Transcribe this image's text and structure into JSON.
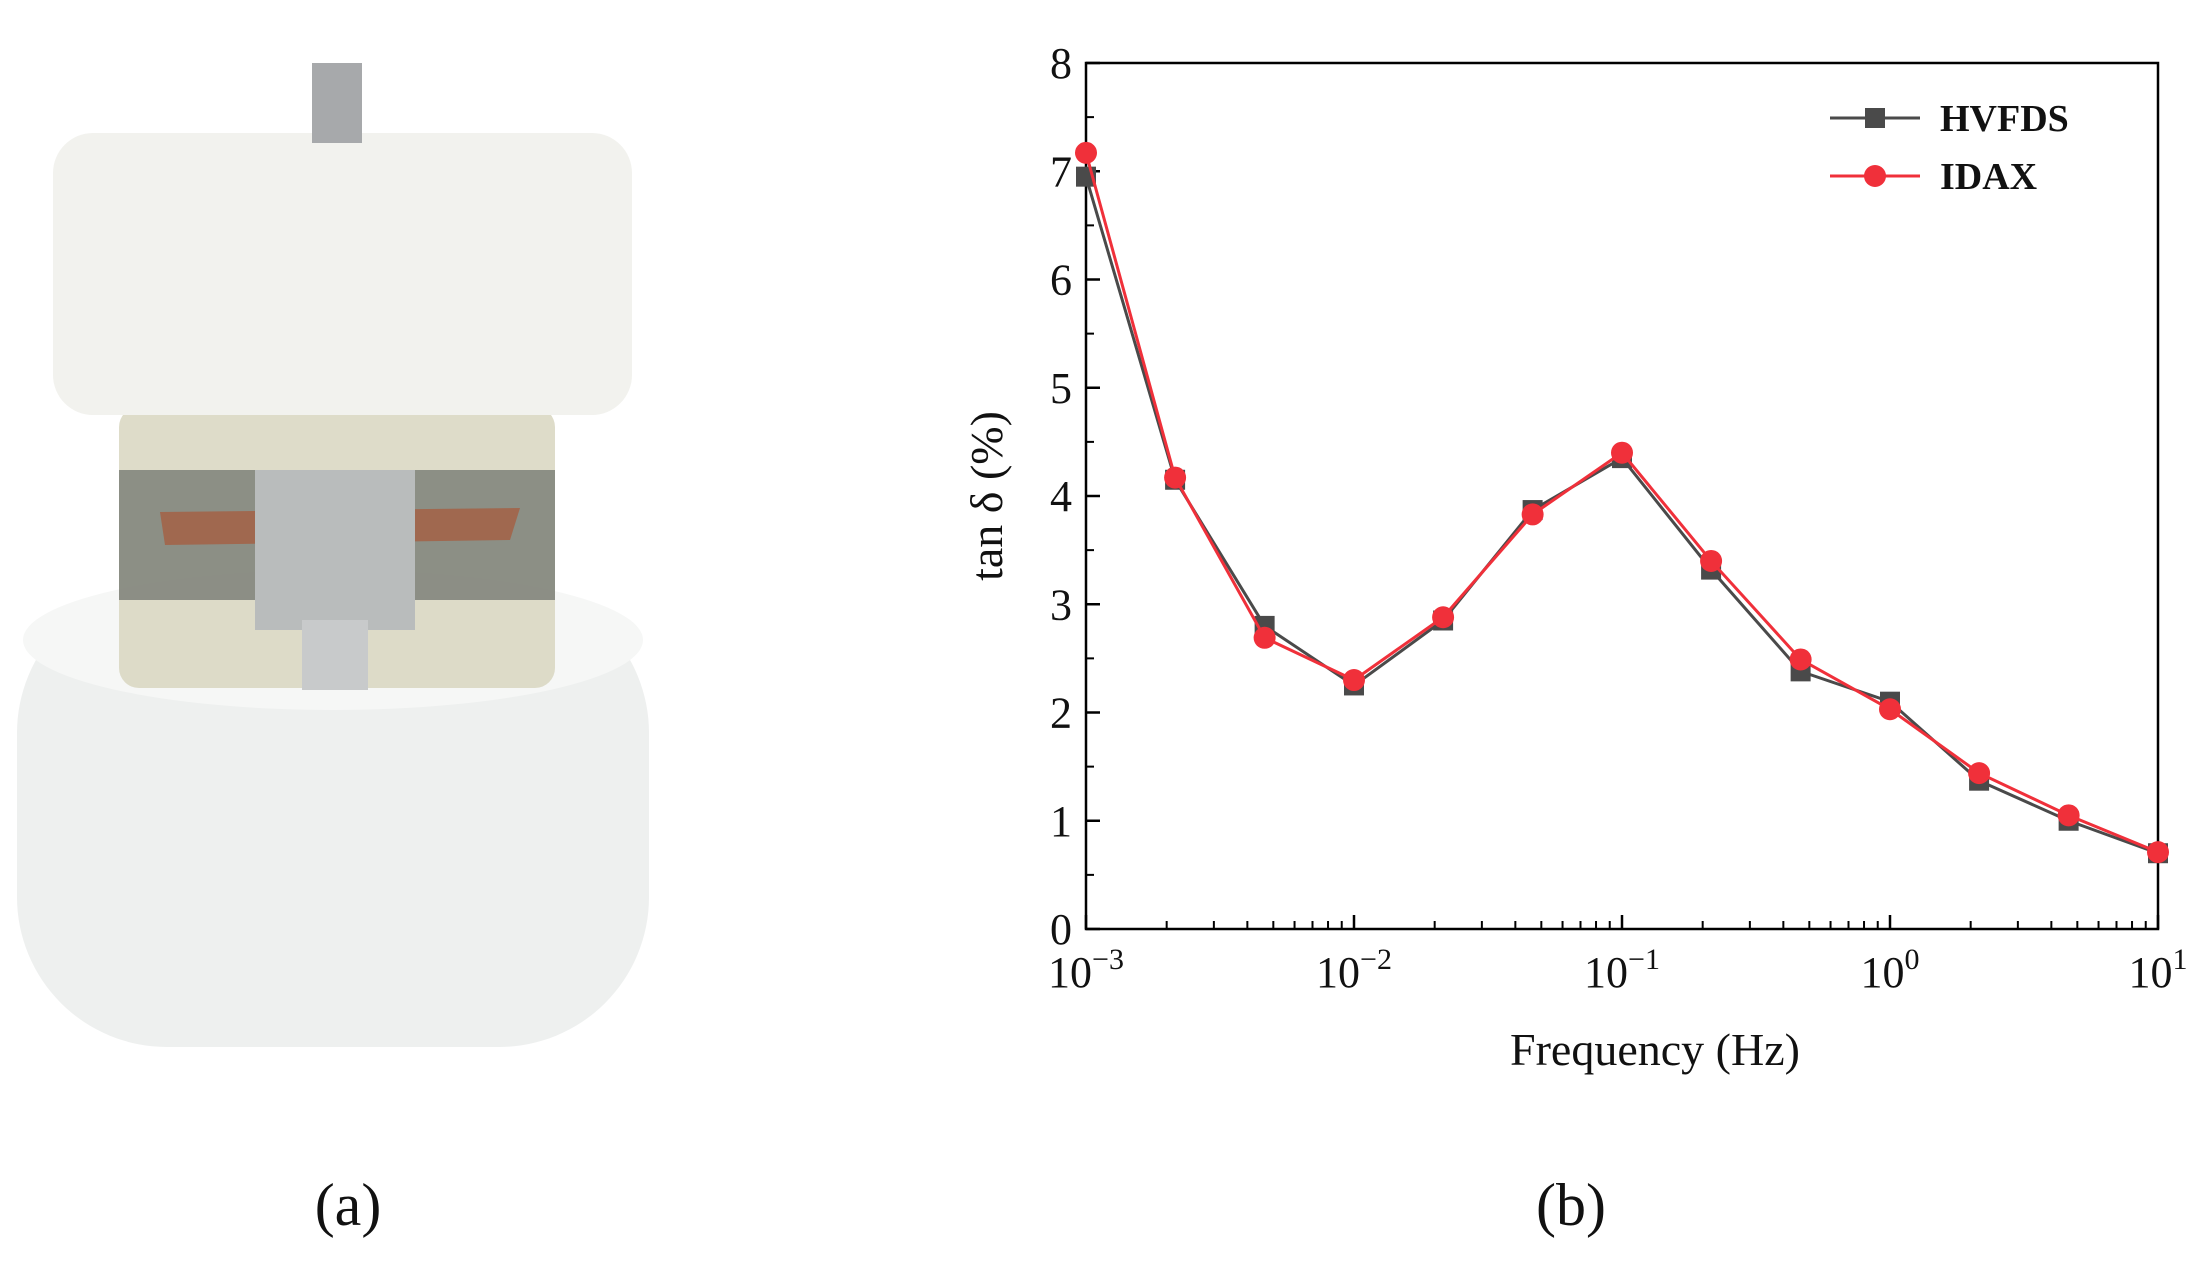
{
  "panels": [
    "(a)",
    "(b)"
  ],
  "chart_data": {
    "type": "line",
    "x_label": "Frequency (Hz)",
    "y_label": "tan δ (%)",
    "x": [
      0.001,
      0.00215,
      0.00464,
      0.01,
      0.0215,
      0.0464,
      0.1,
      0.215,
      0.464,
      1,
      2.15,
      4.64,
      10
    ],
    "series": [
      {
        "name": "HVFDS",
        "color": "#4a4a4a",
        "marker": "square",
        "values": [
          6.95,
          4.15,
          2.8,
          2.25,
          2.85,
          3.87,
          4.35,
          3.32,
          2.38,
          2.1,
          1.37,
          1.0,
          0.7
        ]
      },
      {
        "name": "IDAX",
        "color": "#f0303a",
        "marker": "circle",
        "values": [
          7.17,
          4.17,
          2.69,
          2.3,
          2.88,
          3.83,
          4.4,
          3.4,
          2.49,
          2.03,
          1.44,
          1.05,
          0.71
        ]
      }
    ],
    "xscale": "log",
    "xlim": [
      0.001,
      10
    ],
    "xticks": [
      {
        "value": 0.001,
        "label": "10−3"
      },
      {
        "value": 0.01,
        "label": "10−2"
      },
      {
        "value": 0.1,
        "label": "10−1"
      },
      {
        "value": 1,
        "label": "100"
      },
      {
        "value": 10,
        "label": "101"
      }
    ],
    "ylim": [
      0,
      8
    ],
    "yticks": [
      0,
      1,
      2,
      3,
      4,
      5,
      6,
      7,
      8
    ],
    "legend": "top-right"
  }
}
